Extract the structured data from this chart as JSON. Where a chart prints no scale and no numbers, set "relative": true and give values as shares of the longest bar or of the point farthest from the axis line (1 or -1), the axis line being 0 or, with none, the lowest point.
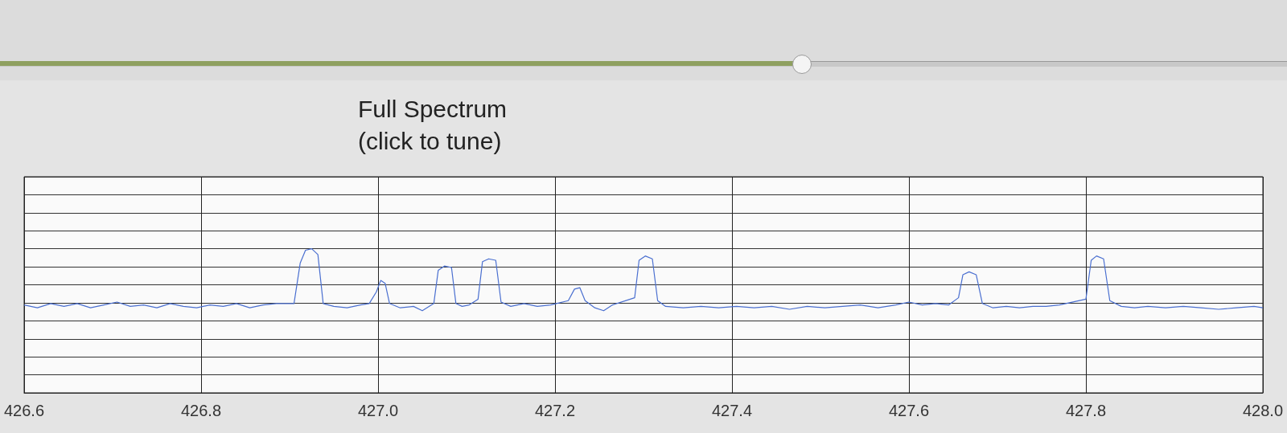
{
  "chart_data": {
    "type": "line",
    "title": "Full Spectrum\n(click to tune)",
    "relative": true,
    "grid": true,
    "marker": "none",
    "line_style": "solid",
    "xlim": [
      426.6,
      428.0
    ],
    "xticks": [
      {
        "value": 426.6,
        "label": "426.6"
      },
      {
        "value": 426.8,
        "label": "426.8"
      },
      {
        "value": 427.0,
        "label": "427.0"
      },
      {
        "value": 427.2,
        "label": "427.2"
      },
      {
        "value": 427.4,
        "label": "427.4"
      },
      {
        "value": 427.6,
        "label": "427.6"
      },
      {
        "value": 427.8,
        "label": "427.8"
      },
      {
        "value": 428.0,
        "label": "428.0"
      }
    ],
    "series": [
      {
        "color": "#4a6fd0",
        "x": [
          426.6,
          426.615,
          426.63,
          426.645,
          426.66,
          426.675,
          426.69,
          426.705,
          426.72,
          426.735,
          426.75,
          426.765,
          426.78,
          426.795,
          426.81,
          426.825,
          426.84,
          426.855,
          426.87,
          426.885,
          426.905,
          426.912,
          426.918,
          426.925,
          426.932,
          426.938,
          426.95,
          426.965,
          426.98,
          426.99,
          426.998,
          427.003,
          427.008,
          427.013,
          427.025,
          427.04,
          427.05,
          427.063,
          427.068,
          427.075,
          427.083,
          427.088,
          427.095,
          427.103,
          427.113,
          427.118,
          427.125,
          427.133,
          427.139,
          427.15,
          427.165,
          427.18,
          427.195,
          427.215,
          427.222,
          427.228,
          427.234,
          427.245,
          427.255,
          427.265,
          427.29,
          427.295,
          427.302,
          427.31,
          427.316,
          427.325,
          427.345,
          427.365,
          427.385,
          427.405,
          427.425,
          427.445,
          427.465,
          427.485,
          427.505,
          427.525,
          427.545,
          427.565,
          427.585,
          427.6,
          427.615,
          427.63,
          427.645,
          427.656,
          427.661,
          427.668,
          427.676,
          427.683,
          427.695,
          427.71,
          427.725,
          427.74,
          427.755,
          427.77,
          427.8,
          427.806,
          427.812,
          427.82,
          427.827,
          427.84,
          427.855,
          427.87,
          427.89,
          427.91,
          427.93,
          427.95,
          427.97,
          427.99,
          428.0
        ],
        "values": [
          0.61,
          0.59,
          0.62,
          0.6,
          0.62,
          0.59,
          0.61,
          0.63,
          0.6,
          0.61,
          0.59,
          0.62,
          0.6,
          0.59,
          0.61,
          0.6,
          0.62,
          0.59,
          0.61,
          0.62,
          0.62,
          0.9,
          0.99,
          1.0,
          0.96,
          0.62,
          0.6,
          0.59,
          0.61,
          0.62,
          0.7,
          0.78,
          0.76,
          0.62,
          0.59,
          0.6,
          0.57,
          0.62,
          0.85,
          0.88,
          0.87,
          0.62,
          0.6,
          0.61,
          0.65,
          0.91,
          0.93,
          0.92,
          0.63,
          0.6,
          0.62,
          0.6,
          0.61,
          0.64,
          0.72,
          0.73,
          0.64,
          0.59,
          0.57,
          0.61,
          0.66,
          0.92,
          0.95,
          0.93,
          0.64,
          0.6,
          0.59,
          0.6,
          0.59,
          0.6,
          0.59,
          0.6,
          0.58,
          0.6,
          0.59,
          0.6,
          0.61,
          0.59,
          0.61,
          0.63,
          0.61,
          0.62,
          0.61,
          0.66,
          0.82,
          0.84,
          0.82,
          0.62,
          0.59,
          0.6,
          0.59,
          0.6,
          0.6,
          0.61,
          0.65,
          0.92,
          0.95,
          0.93,
          0.64,
          0.6,
          0.59,
          0.6,
          0.59,
          0.6,
          0.59,
          0.58,
          0.59,
          0.6,
          0.59
        ]
      }
    ]
  }
}
